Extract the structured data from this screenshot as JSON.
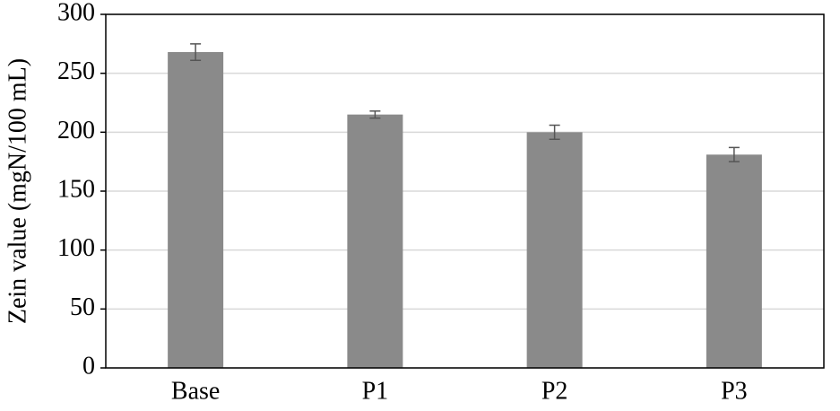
{
  "chart_data": {
    "type": "bar",
    "ylabel": "Zein value (mgN/100 mL)",
    "categories": [
      "Base",
      "P1",
      "P2",
      "P3"
    ],
    "values": [
      268,
      215,
      200,
      181
    ],
    "errors": [
      7,
      3,
      6,
      6
    ],
    "color": "#8a8a8a",
    "ylim": [
      0,
      300
    ],
    "yticks": [
      0,
      50,
      100,
      150,
      200,
      250,
      300
    ],
    "grid": true
  }
}
